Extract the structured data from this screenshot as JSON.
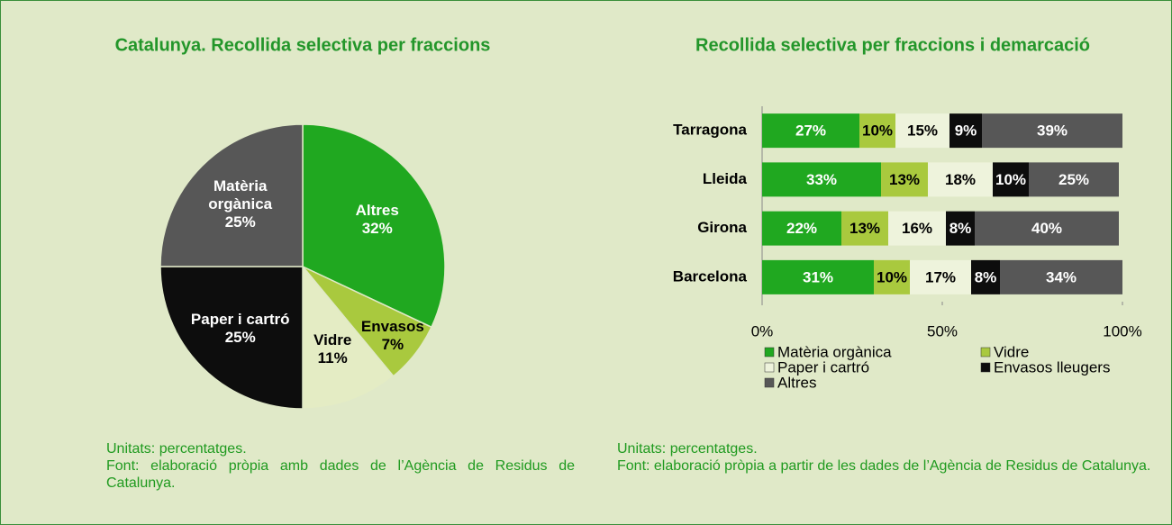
{
  "chart_data": [
    {
      "type": "pie",
      "title": "Catalunya. Recollida selectiva per fraccions",
      "categories": [
        "Altres",
        "Envasos",
        "Vidre",
        "Paper i cartró",
        "Matèria orgànica"
      ],
      "values": [
        32,
        7,
        11,
        25,
        25
      ],
      "value_labels": [
        "32%",
        "7%",
        "11%",
        "25%",
        "25%"
      ],
      "colors": [
        "#20a820",
        "#a9c93e",
        "#e4ecc4",
        "#0d0d0d",
        "#575757"
      ],
      "notes": [
        "Unitats: percentatges.",
        "Font: elaboració pròpia amb dades de l’Agència de Residus de Catalunya."
      ]
    },
    {
      "type": "stacked_barh",
      "title": "Recollida selectiva per fraccions i demarcació",
      "categories": [
        "Tarragona",
        "Lleida",
        "Girona",
        "Barcelona"
      ],
      "series": [
        {
          "name": "Matèria orgànica",
          "color": "#20a820",
          "values": [
            27,
            33,
            22,
            31
          ],
          "value_labels": [
            "27%",
            "33%",
            "22%",
            "31%"
          ]
        },
        {
          "name": "Vidre",
          "color": "#a9c93e",
          "values": [
            10,
            13,
            13,
            10
          ],
          "value_labels": [
            "10%",
            "13%",
            "13%",
            "10%"
          ]
        },
        {
          "name": "Paper i cartró",
          "color": "#eef3dc",
          "values": [
            15,
            18,
            16,
            17
          ],
          "value_labels": [
            "15%",
            "18%",
            "16%",
            "17%"
          ]
        },
        {
          "name": "Envasos lleugers",
          "color": "#0d0d0d",
          "values": [
            9,
            10,
            8,
            8
          ],
          "value_labels": [
            "9%",
            "10%",
            "8%",
            "8%"
          ]
        },
        {
          "name": "Altres",
          "color": "#575757",
          "values": [
            39,
            25,
            40,
            34
          ],
          "value_labels": [
            "39%",
            "25%",
            "40%",
            "34%"
          ]
        }
      ],
      "xlim": [
        0,
        100
      ],
      "xticks": [
        {
          "value": 0,
          "label": "0%"
        },
        {
          "value": 50,
          "label": "50%"
        },
        {
          "value": 100,
          "label": "100%"
        }
      ],
      "notes": [
        "Unitats: percentatges.",
        "Font: elaboració pròpia a partir de les dades de l’Agència de Residus de Catalunya."
      ]
    }
  ]
}
